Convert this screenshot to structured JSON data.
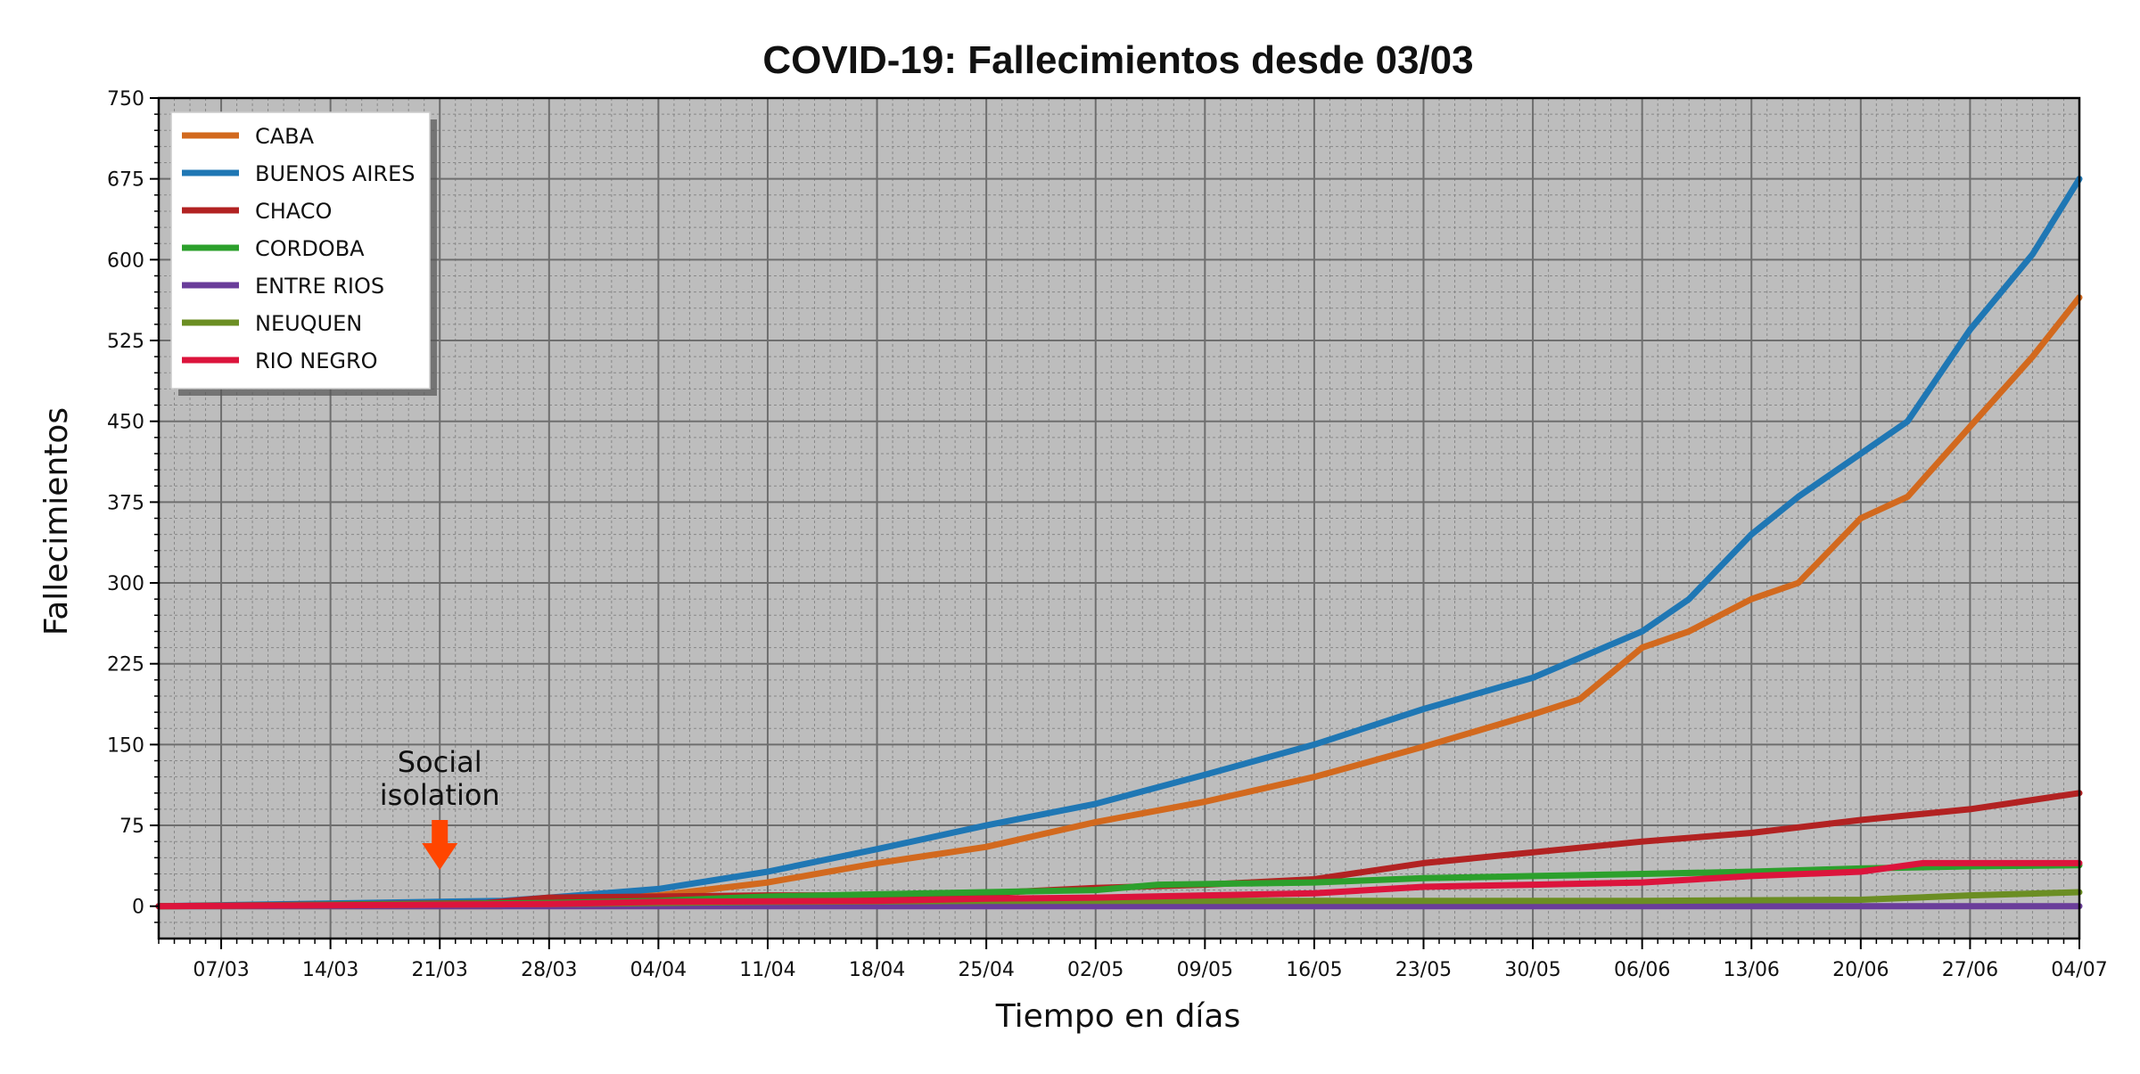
{
  "chart_data": {
    "type": "line",
    "title": "COVID-19: Fallecimientos desde 03/03",
    "xlabel": "Tiempo en días",
    "ylabel": "Fallecimientos",
    "x_start": "03/03",
    "x_end": "04/07",
    "ylim": [
      -30,
      750
    ],
    "yticks": [
      0,
      75,
      150,
      225,
      300,
      375,
      450,
      525,
      600,
      675,
      750
    ],
    "xticks": [
      "07/03",
      "14/03",
      "21/03",
      "28/03",
      "04/04",
      "11/04",
      "18/04",
      "25/04",
      "02/05",
      "09/05",
      "16/05",
      "23/05",
      "30/05",
      "06/06",
      "13/06",
      "20/06",
      "27/06",
      "04/07"
    ],
    "grid": true,
    "legend_position": "top-left",
    "annotation": {
      "text_line1": "Social",
      "text_line2": "isolation",
      "x": "21/03",
      "color": "#ff4500"
    },
    "colors": {
      "plot_background": "#bdbdbd",
      "grid_major": "#6e6e6e",
      "grid_minor": "#888888"
    },
    "series": [
      {
        "name": "CABA",
        "color": "#d2691e",
        "points": [
          [
            "03/03",
            0
          ],
          [
            "25/03",
            0
          ],
          [
            "28/03",
            8
          ],
          [
            "04/04",
            10
          ],
          [
            "11/04",
            22
          ],
          [
            "18/04",
            40
          ],
          [
            "25/04",
            55
          ],
          [
            "02/05",
            78
          ],
          [
            "09/05",
            97
          ],
          [
            "16/05",
            120
          ],
          [
            "23/05",
            148
          ],
          [
            "30/05",
            178
          ],
          [
            "02/06",
            192
          ],
          [
            "06/06",
            240
          ],
          [
            "09/06",
            255
          ],
          [
            "13/06",
            285
          ],
          [
            "16/06",
            300
          ],
          [
            "20/06",
            360
          ],
          [
            "23/06",
            380
          ],
          [
            "27/06",
            445
          ],
          [
            "01/07",
            510
          ],
          [
            "04/07",
            565
          ]
        ]
      },
      {
        "name": "BUENOS AIRES",
        "color": "#1f77b4",
        "points": [
          [
            "03/03",
            0
          ],
          [
            "25/03",
            5
          ],
          [
            "28/03",
            8
          ],
          [
            "04/04",
            16
          ],
          [
            "11/04",
            32
          ],
          [
            "18/04",
            53
          ],
          [
            "25/04",
            75
          ],
          [
            "02/05",
            95
          ],
          [
            "09/05",
            122
          ],
          [
            "16/05",
            150
          ],
          [
            "23/05",
            183
          ],
          [
            "30/05",
            212
          ],
          [
            "06/06",
            255
          ],
          [
            "09/06",
            285
          ],
          [
            "13/06",
            345
          ],
          [
            "16/06",
            380
          ],
          [
            "20/06",
            420
          ],
          [
            "23/06",
            450
          ],
          [
            "27/06",
            535
          ],
          [
            "01/07",
            605
          ],
          [
            "04/07",
            675
          ]
        ]
      },
      {
        "name": "CHACO",
        "color": "#b22222",
        "points": [
          [
            "03/03",
            0
          ],
          [
            "24/03",
            3
          ],
          [
            "28/03",
            8
          ],
          [
            "04/04",
            9
          ],
          [
            "11/04",
            10
          ],
          [
            "18/04",
            10
          ],
          [
            "25/04",
            12
          ],
          [
            "02/05",
            17
          ],
          [
            "09/05",
            20
          ],
          [
            "16/05",
            25
          ],
          [
            "23/05",
            40
          ],
          [
            "30/05",
            50
          ],
          [
            "06/06",
            60
          ],
          [
            "13/06",
            68
          ],
          [
            "20/06",
            80
          ],
          [
            "27/06",
            90
          ],
          [
            "04/07",
            105
          ]
        ]
      },
      {
        "name": "CORDOBA",
        "color": "#2ca02c",
        "points": [
          [
            "03/03",
            0
          ],
          [
            "28/03",
            3
          ],
          [
            "04/04",
            5
          ],
          [
            "11/04",
            9
          ],
          [
            "18/04",
            11
          ],
          [
            "25/04",
            13
          ],
          [
            "02/05",
            15
          ],
          [
            "06/05",
            20
          ],
          [
            "16/05",
            22
          ],
          [
            "23/05",
            26
          ],
          [
            "30/05",
            28
          ],
          [
            "06/06",
            30
          ],
          [
            "13/06",
            32
          ],
          [
            "20/06",
            35
          ],
          [
            "27/06",
            37
          ],
          [
            "04/07",
            38
          ]
        ]
      },
      {
        "name": "ENTRE RIOS",
        "color": "#6a3d9a",
        "points": [
          [
            "03/03",
            0
          ],
          [
            "04/07",
            0
          ]
        ]
      },
      {
        "name": "NEUQUEN",
        "color": "#6b8e23",
        "points": [
          [
            "03/03",
            0
          ],
          [
            "28/03",
            2
          ],
          [
            "11/04",
            4
          ],
          [
            "25/04",
            5
          ],
          [
            "16/05",
            5
          ],
          [
            "06/06",
            5
          ],
          [
            "20/06",
            6
          ],
          [
            "27/06",
            10
          ],
          [
            "04/07",
            13
          ]
        ]
      },
      {
        "name": "RIO NEGRO",
        "color": "#dc143c",
        "points": [
          [
            "03/03",
            0
          ],
          [
            "28/03",
            2
          ],
          [
            "04/04",
            4
          ],
          [
            "18/04",
            5
          ],
          [
            "25/04",
            7
          ],
          [
            "02/05",
            8
          ],
          [
            "16/05",
            12
          ],
          [
            "23/05",
            18
          ],
          [
            "30/05",
            20
          ],
          [
            "06/06",
            22
          ],
          [
            "13/06",
            28
          ],
          [
            "20/06",
            32
          ],
          [
            "24/06",
            40
          ],
          [
            "04/07",
            40
          ]
        ]
      }
    ]
  }
}
